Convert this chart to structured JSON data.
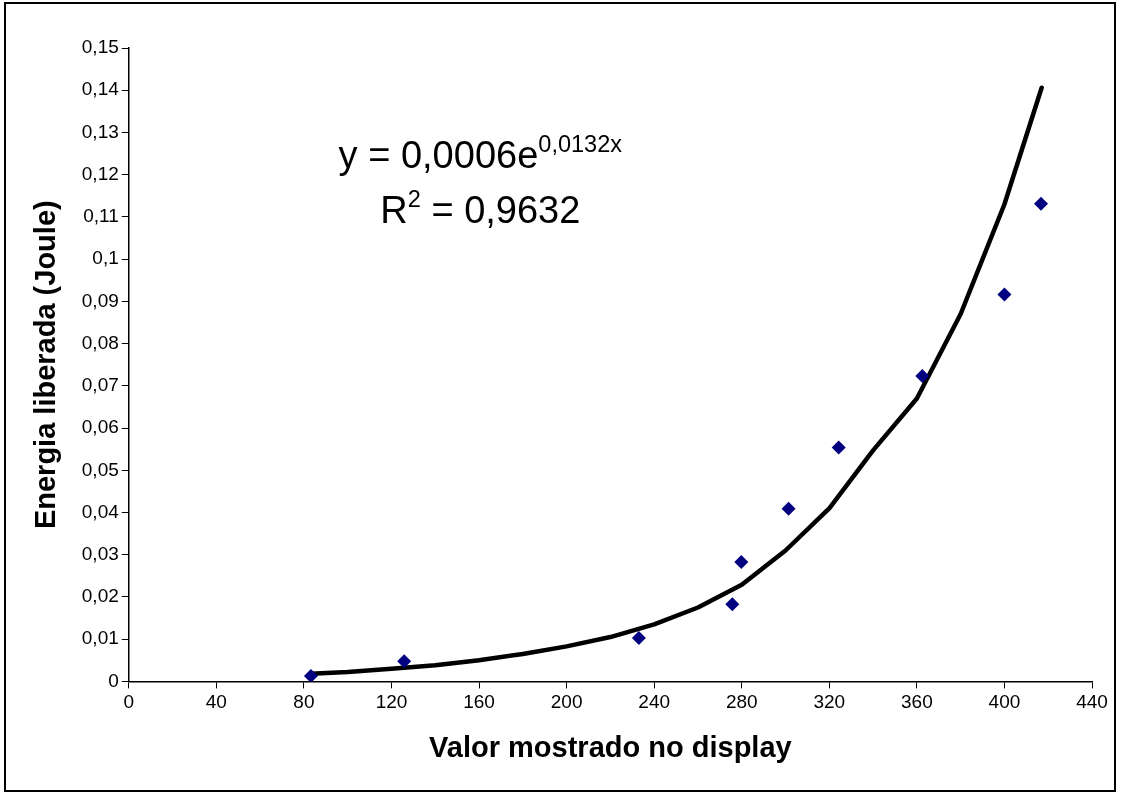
{
  "chart_data": {
    "type": "scatter",
    "xlabel": "Valor mostrado no display",
    "ylabel": "Energia liberada (Joule)",
    "xlim": [
      0,
      440
    ],
    "xticks": [
      0,
      40,
      80,
      120,
      160,
      200,
      240,
      280,
      320,
      360,
      400,
      440
    ],
    "ylim": [
      0,
      0.15
    ],
    "yticks": [
      0,
      {
        "value": 0.01,
        "label": "0,01"
      },
      {
        "value": 0.02,
        "label": "0,02"
      },
      {
        "value": 0.03,
        "label": "0,03"
      },
      {
        "value": 0.04,
        "label": "0,04"
      },
      {
        "value": 0.05,
        "label": "0,05"
      },
      {
        "value": 0.06,
        "label": "0,06"
      },
      {
        "value": 0.07,
        "label": "0,07"
      },
      {
        "value": 0.08,
        "label": "0,08"
      },
      {
        "value": 0.09,
        "label": "0,09"
      },
      {
        "value": 0.1,
        "label": "0,1"
      },
      {
        "value": 0.11,
        "label": "0,11"
      },
      {
        "value": 0.12,
        "label": "0,12"
      },
      {
        "value": 0.13,
        "label": "0,13"
      },
      {
        "value": 0.14,
        "label": "0,14"
      },
      {
        "value": 0.15,
        "label": "0,15"
      }
    ],
    "grid": false,
    "legend": false,
    "marker": "diamond",
    "series": [
      {
        "type": "scatter",
        "color": "#000080",
        "x": [
          83.2,
          125.8,
          233,
          275.7,
          279.8,
          301.4,
          324.3,
          362.5,
          400,
          416.7
        ],
        "values": [
          0.0013,
          0.0048,
          0.0103,
          0.0183,
          0.0283,
          0.0409,
          0.0554,
          0.0723,
          0.0916,
          0.1131
        ]
      },
      {
        "type": "line",
        "color": "#000000",
        "marker": "none",
        "line_style": "solid",
        "x": [
          83,
          100,
          120,
          140,
          160,
          180,
          200,
          220,
          240,
          260,
          280,
          300,
          320,
          340,
          360,
          380,
          400,
          417
        ],
        "values": [
          0.0018,
          0.0022,
          0.003,
          0.0038,
          0.005,
          0.0065,
          0.0083,
          0.0105,
          0.0135,
          0.0175,
          0.0229,
          0.031,
          0.041,
          0.0547,
          0.067,
          0.087,
          0.113,
          0.1406
        ]
      }
    ],
    "annotations": [
      "y = 0,0006e$^{0,0132x}$",
      "R$^{2}$ = 0,9632"
    ]
  }
}
